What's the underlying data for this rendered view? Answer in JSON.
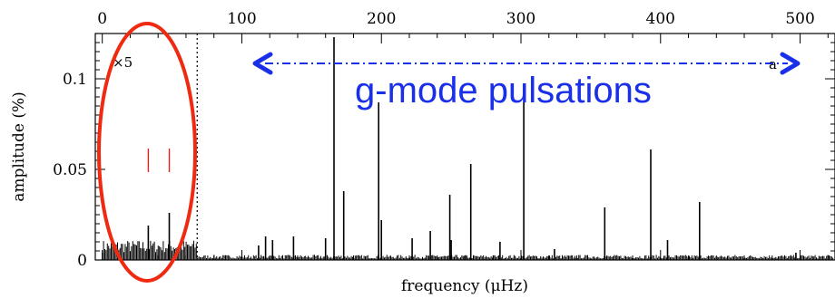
{
  "chart_data": {
    "type": "line",
    "title": "",
    "xlabel": "frequency (μHz)",
    "ylabel": "amplitude (%)",
    "xlim": [
      -5,
      525
    ],
    "ylim": [
      0,
      0.125
    ],
    "x_ticks": [
      0,
      100,
      200,
      300,
      400,
      500
    ],
    "y_ticks": [
      0,
      0.05,
      0.1
    ],
    "y_tick_labels": [
      "0",
      "0.05",
      "0.1"
    ],
    "grid": false,
    "cutoff_line_x": 68,
    "low_freq_magnification_label": "×5",
    "low_freq_markers_x": [
      33,
      48
    ],
    "peaks": [
      {
        "x": 33,
        "y": 0.019
      },
      {
        "x": 48,
        "y": 0.026
      },
      {
        "x": 112,
        "y": 0.008
      },
      {
        "x": 117,
        "y": 0.013
      },
      {
        "x": 122,
        "y": 0.011
      },
      {
        "x": 137,
        "y": 0.013
      },
      {
        "x": 160,
        "y": 0.012
      },
      {
        "x": 166,
        "y": 0.123
      },
      {
        "x": 173,
        "y": 0.038
      },
      {
        "x": 198,
        "y": 0.087
      },
      {
        "x": 200,
        "y": 0.022
      },
      {
        "x": 222,
        "y": 0.012
      },
      {
        "x": 235,
        "y": 0.016
      },
      {
        "x": 249,
        "y": 0.036
      },
      {
        "x": 250,
        "y": 0.011
      },
      {
        "x": 264,
        "y": 0.053
      },
      {
        "x": 285,
        "y": 0.01
      },
      {
        "x": 302,
        "y": 0.088
      },
      {
        "x": 324,
        "y": 0.006
      },
      {
        "x": 360,
        "y": 0.029
      },
      {
        "x": 393,
        "y": 0.061
      },
      {
        "x": 405,
        "y": 0.011
      },
      {
        "x": 428,
        "y": 0.032
      },
      {
        "x": 497,
        "y": 0.004
      }
    ]
  },
  "annotations": {
    "g_mode_label": "g-mode pulsations",
    "arrow_end_label": "a",
    "colors": {
      "ellipse": "#ef2a10",
      "arrow": "#1a2fe8",
      "markers": "#e8201a"
    }
  }
}
